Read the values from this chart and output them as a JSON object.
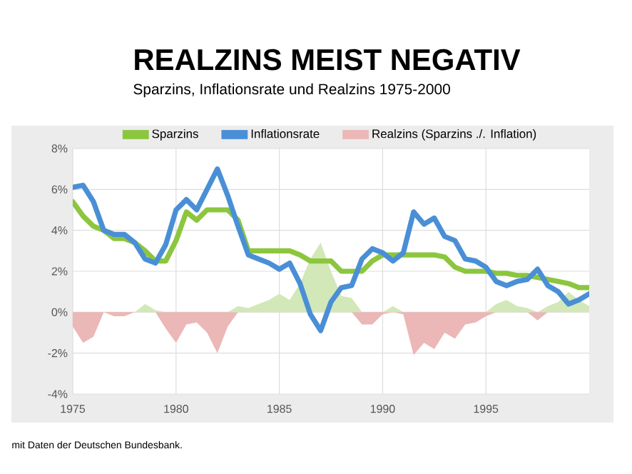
{
  "chart_data": {
    "type": "line",
    "title": "REALZINS MEIST NEGATIV",
    "subtitle": "Sparzins, Inflationsrate und Realzins 1975-2000",
    "annotations": [
      "mit Daten der Deutschen Bundesbank."
    ],
    "x": [
      1975.0,
      1975.5,
      1976.0,
      1976.5,
      1977.0,
      1977.5,
      1978.0,
      1978.5,
      1979.0,
      1979.5,
      1980.0,
      1980.5,
      1981.0,
      1981.5,
      1982.0,
      1982.5,
      1983.0,
      1983.5,
      1984.0,
      1984.5,
      1985.0,
      1985.5,
      1986.0,
      1986.5,
      1987.0,
      1987.5,
      1988.0,
      1988.5,
      1989.0,
      1989.5,
      1990.0,
      1990.5,
      1991.0,
      1991.5,
      1992.0,
      1992.5,
      1993.0,
      1993.5,
      1994.0,
      1994.5,
      1995.0,
      1995.5,
      1996.0,
      1996.5,
      1997.0,
      1997.5,
      1998.0,
      1998.5,
      1999.0,
      1999.5,
      2000.0
    ],
    "series": [
      {
        "name": "Realzins (Sparzins ./. Inflation)",
        "type": "area",
        "color": "#ebb7b7",
        "values": [
          -0.7,
          -1.5,
          -1.2,
          0,
          -0.2,
          -0.2,
          0,
          0,
          0,
          -0.8,
          -1.5,
          -0.6,
          -0.5,
          -1.0,
          -2.0,
          -0.7,
          0,
          0,
          0,
          0,
          0,
          0,
          0,
          0,
          0,
          0,
          0,
          0,
          -0.6,
          -0.6,
          -0.1,
          0,
          -0.1,
          -2.1,
          -1.5,
          -1.8,
          -1.0,
          -1.3,
          -0.6,
          -0.5,
          -0.2,
          0,
          0,
          0,
          0,
          -0.4,
          0,
          0,
          0,
          0,
          0
        ]
      },
      {
        "type": "area",
        "color": "#d3e8b8",
        "values": [
          0,
          0,
          0,
          0,
          0,
          0,
          0,
          0.4,
          0.1,
          0,
          0,
          0,
          0,
          0,
          0,
          0,
          0.3,
          0.2,
          0.4,
          0.6,
          0.9,
          0.6,
          1.4,
          2.6,
          3.4,
          2.0,
          0.8,
          0.7,
          0,
          0,
          0,
          0.3,
          0,
          0,
          0,
          0,
          0,
          0,
          0,
          0,
          0,
          0.4,
          0.6,
          0.3,
          0.2,
          0,
          0.3,
          0.5,
          1.0,
          0.6,
          0.3
        ]
      },
      {
        "name": "Sparzins",
        "color": "#8cc63e",
        "values": [
          5.4,
          4.7,
          4.2,
          4.0,
          3.6,
          3.6,
          3.4,
          3.0,
          2.5,
          2.5,
          3.5,
          4.9,
          4.5,
          5.0,
          5.0,
          5.0,
          4.5,
          3.0,
          3.0,
          3.0,
          3.0,
          3.0,
          2.8,
          2.5,
          2.5,
          2.5,
          2.0,
          2.0,
          2.0,
          2.5,
          2.8,
          2.8,
          2.8,
          2.8,
          2.8,
          2.8,
          2.7,
          2.2,
          2.0,
          2.0,
          2.0,
          1.9,
          1.9,
          1.8,
          1.8,
          1.7,
          1.6,
          1.5,
          1.4,
          1.2,
          1.2
        ]
      },
      {
        "name": "Inflationsrate",
        "color": "#4a8fd6",
        "values": [
          6.1,
          6.2,
          5.4,
          4.0,
          3.8,
          3.8,
          3.4,
          2.6,
          2.4,
          3.3,
          5.0,
          5.5,
          5.0,
          6.0,
          7.0,
          5.7,
          4.2,
          2.8,
          2.6,
          2.4,
          2.1,
          2.4,
          1.4,
          -0.1,
          -0.9,
          0.5,
          1.2,
          1.3,
          2.6,
          3.1,
          2.9,
          2.5,
          2.9,
          4.9,
          4.3,
          4.6,
          3.7,
          3.5,
          2.6,
          2.5,
          2.2,
          1.5,
          1.3,
          1.5,
          1.6,
          2.1,
          1.3,
          1.0,
          0.4,
          0.6,
          0.9
        ]
      }
    ],
    "xlim": [
      1975,
      2000
    ],
    "xticks": [
      1975,
      1980,
      1985,
      1990,
      1995
    ],
    "ylim": [
      -4,
      8
    ],
    "yticks": [
      {
        "value": -4,
        "label": "-4%"
      },
      {
        "value": -2,
        "label": "-2%"
      },
      {
        "value": 0,
        "label": "0%"
      },
      {
        "value": 2,
        "label": "2%"
      },
      {
        "value": 4,
        "label": "4%"
      },
      {
        "value": 6,
        "label": "6%"
      },
      {
        "value": 8,
        "label": "8%"
      }
    ],
    "grid": true,
    "legend": "top",
    "marker": "none",
    "line_style": "solid"
  }
}
